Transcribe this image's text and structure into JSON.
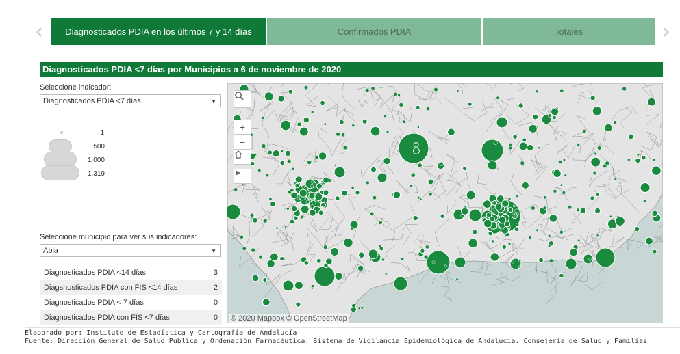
{
  "tabs": [
    {
      "label": "Diagnosticados PDIA en los últimos 7 y 14 días",
      "active": true
    },
    {
      "label": "Confirmados PDIA",
      "active": false
    },
    {
      "label": "Totales",
      "active": false
    }
  ],
  "nav": {
    "prev_icon": "chevron-left-icon",
    "next_icon": "chevron-right-icon"
  },
  "title": "Diagnosticados PDIA <7 días por Municipios a 6 de noviembre de 2020",
  "indicator": {
    "label": "Seleccione indicador:",
    "value": "Diagnosticados PDIA <7 días"
  },
  "legend": {
    "values": [
      "1",
      "500",
      "1.000",
      "1.319"
    ]
  },
  "municipality": {
    "label": "Seleccione municipio para ver sus indicadores:",
    "value": "Abla"
  },
  "indicators": [
    {
      "name": "Diagnosticados PDIA <14 días",
      "value": "3"
    },
    {
      "name": "Diagsnosticados PDIA con FIS <14 días",
      "value": "2"
    },
    {
      "name": "Diagnosticados PDIA < 7 días",
      "value": "0"
    },
    {
      "name": "Diagnosticados PDIA con FIS <7 días",
      "value": "0"
    }
  ],
  "map": {
    "attribution": "© 2020 Mapbox © OpenStreetMap",
    "bubble_color": "#1a8a3f",
    "land_color": "#e4e4e4",
    "sea_color": "#c8d6d6",
    "tools": [
      "search-icon",
      "zoom-in-icon",
      "zoom-out-icon",
      "home-icon",
      "play-icon"
    ]
  },
  "footer": {
    "line1": "Elaborado por: Instituto de Estadística y Cartografía de Andalucía",
    "line2": "Fuente: Dirección General de Salud Pública y Ordenación Farmacéutica. Sistema de Vigilancia Epidemiológica de Andalucía. Consejería de Salud y Familias"
  }
}
